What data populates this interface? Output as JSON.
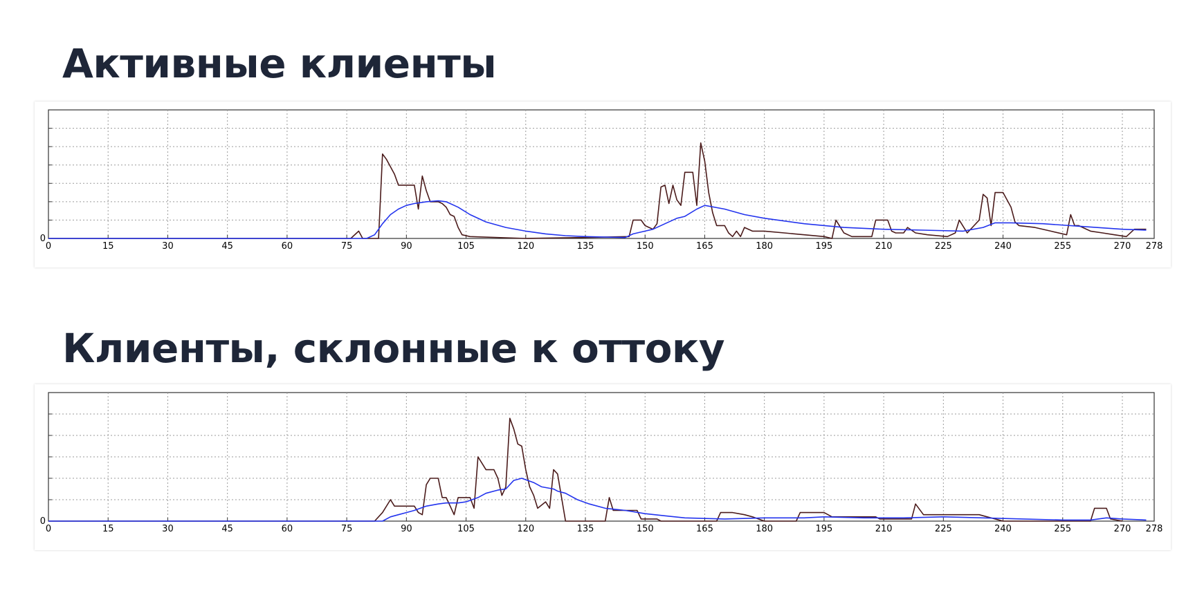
{
  "colors": {
    "title": "#1e2638",
    "raw_series": "#4a1a1a",
    "smooth_series": "#2233ee",
    "grid": "#9a9a9a"
  },
  "chart_data": [
    {
      "type": "line",
      "title": "Активные клиенты",
      "xlim": [
        0,
        278
      ],
      "ylim": [
        0,
        7
      ],
      "x_ticks": [
        0,
        15,
        30,
        45,
        60,
        75,
        90,
        105,
        120,
        135,
        150,
        165,
        180,
        195,
        210,
        225,
        240,
        255,
        270,
        278
      ],
      "y_tick_labels": [
        {
          "value": 0,
          "label": "0"
        }
      ],
      "grid": true,
      "series": [
        {
          "points": [
            [
              0,
              0
            ],
            [
              76,
              0
            ],
            [
              78,
              0.4
            ],
            [
              79,
              0
            ],
            [
              83,
              0
            ],
            [
              84,
              4.6
            ],
            [
              85,
              4.3
            ],
            [
              87,
              3.5
            ],
            [
              88,
              2.9
            ],
            [
              92,
              2.9
            ],
            [
              93,
              1.6
            ],
            [
              94,
              3.4
            ],
            [
              95,
              2.6
            ],
            [
              96,
              2.0
            ],
            [
              98,
              2.0
            ],
            [
              99,
              1.9
            ],
            [
              100,
              1.7
            ],
            [
              101,
              1.3
            ],
            [
              102,
              1.2
            ],
            [
              103,
              0.6
            ],
            [
              104,
              0.2
            ],
            [
              106,
              0.1
            ],
            [
              120,
              0
            ],
            [
              134,
              0.05
            ],
            [
              146,
              0.1
            ],
            [
              147,
              1.0
            ],
            [
              149,
              1.0
            ],
            [
              150,
              0.7
            ],
            [
              151,
              0.6
            ],
            [
              152,
              0.5
            ],
            [
              153,
              0.8
            ],
            [
              154,
              2.8
            ],
            [
              155,
              2.9
            ],
            [
              156,
              1.9
            ],
            [
              157,
              2.9
            ],
            [
              158,
              2.1
            ],
            [
              159,
              1.8
            ],
            [
              160,
              3.6
            ],
            [
              162,
              3.6
            ],
            [
              163,
              1.8
            ],
            [
              164,
              5.2
            ],
            [
              165,
              4.2
            ],
            [
              166,
              2.5
            ],
            [
              167,
              1.4
            ],
            [
              168,
              0.7
            ],
            [
              170,
              0.7
            ],
            [
              171,
              0.3
            ],
            [
              172,
              0.1
            ],
            [
              173,
              0.4
            ],
            [
              174,
              0.1
            ],
            [
              175,
              0.6
            ],
            [
              177,
              0.4
            ],
            [
              180,
              0.4
            ],
            [
              185,
              0.3
            ],
            [
              190,
              0.2
            ],
            [
              195,
              0.1
            ],
            [
              197,
              0
            ],
            [
              198,
              1.0
            ],
            [
              200,
              0.3
            ],
            [
              202,
              0.1
            ],
            [
              207,
              0.1
            ],
            [
              208,
              1.0
            ],
            [
              211,
              1.0
            ],
            [
              212,
              0.4
            ],
            [
              213,
              0.3
            ],
            [
              215,
              0.3
            ],
            [
              216,
              0.6
            ],
            [
              218,
              0.3
            ],
            [
              221,
              0.2
            ],
            [
              226,
              0.1
            ],
            [
              228,
              0.3
            ],
            [
              229,
              1.0
            ],
            [
              231,
              0.3
            ],
            [
              234,
              1.0
            ],
            [
              235,
              2.4
            ],
            [
              236,
              2.2
            ],
            [
              237,
              0.7
            ],
            [
              238,
              2.5
            ],
            [
              240,
              2.5
            ],
            [
              242,
              1.7
            ],
            [
              243,
              0.9
            ],
            [
              244,
              0.7
            ],
            [
              248,
              0.6
            ],
            [
              252,
              0.4
            ],
            [
              256,
              0.2
            ],
            [
              257,
              1.3
            ],
            [
              258,
              0.7
            ],
            [
              259,
              0.7
            ],
            [
              262,
              0.4
            ],
            [
              265,
              0.3
            ],
            [
              268,
              0.2
            ],
            [
              271,
              0.1
            ],
            [
              273,
              0.5
            ],
            [
              276,
              0.5
            ]
          ]
        },
        {
          "points": [
            [
              0,
              0
            ],
            [
              80,
              0
            ],
            [
              82,
              0.2
            ],
            [
              84,
              0.8
            ],
            [
              86,
              1.3
            ],
            [
              88,
              1.6
            ],
            [
              90,
              1.8
            ],
            [
              92,
              1.9
            ],
            [
              95,
              2.0
            ],
            [
              98,
              2.05
            ],
            [
              100,
              2.0
            ],
            [
              103,
              1.7
            ],
            [
              106,
              1.3
            ],
            [
              110,
              0.9
            ],
            [
              115,
              0.6
            ],
            [
              120,
              0.4
            ],
            [
              125,
              0.25
            ],
            [
              130,
              0.15
            ],
            [
              135,
              0.1
            ],
            [
              145,
              0.05
            ],
            [
              147,
              0.25
            ],
            [
              150,
              0.4
            ],
            [
              152,
              0.5
            ],
            [
              155,
              0.8
            ],
            [
              158,
              1.1
            ],
            [
              160,
              1.2
            ],
            [
              163,
              1.6
            ],
            [
              165,
              1.8
            ],
            [
              170,
              1.6
            ],
            [
              175,
              1.3
            ],
            [
              180,
              1.1
            ],
            [
              190,
              0.8
            ],
            [
              200,
              0.6
            ],
            [
              210,
              0.5
            ],
            [
              220,
              0.45
            ],
            [
              230,
              0.4
            ],
            [
              235,
              0.6
            ],
            [
              238,
              0.85
            ],
            [
              242,
              0.85
            ],
            [
              250,
              0.8
            ],
            [
              260,
              0.65
            ],
            [
              270,
              0.5
            ],
            [
              276,
              0.45
            ]
          ]
        }
      ]
    },
    {
      "type": "line",
      "title": "Клиенты, склонные к оттоку",
      "xlim": [
        0,
        278
      ],
      "ylim": [
        0,
        6
      ],
      "x_ticks": [
        0,
        15,
        30,
        45,
        60,
        75,
        90,
        105,
        120,
        135,
        150,
        165,
        180,
        195,
        210,
        225,
        240,
        255,
        270,
        278
      ],
      "y_tick_labels": [
        {
          "value": 0,
          "label": "0"
        }
      ],
      "grid": true,
      "series": [
        {
          "points": [
            [
              0,
              0
            ],
            [
              82,
              0
            ],
            [
              84,
              0.4
            ],
            [
              86,
              1.0
            ],
            [
              87,
              0.7
            ],
            [
              90,
              0.7
            ],
            [
              92,
              0.7
            ],
            [
              93,
              0.4
            ],
            [
              94,
              0.3
            ],
            [
              95,
              1.7
            ],
            [
              96,
              2.0
            ],
            [
              98,
              2.0
            ],
            [
              99,
              1.1
            ],
            [
              100,
              1.1
            ],
            [
              101,
              0.7
            ],
            [
              102,
              0.3
            ],
            [
              103,
              1.1
            ],
            [
              106,
              1.1
            ],
            [
              107,
              0.6
            ],
            [
              108,
              3.0
            ],
            [
              109,
              2.7
            ],
            [
              110,
              2.4
            ],
            [
              112,
              2.4
            ],
            [
              113,
              2.0
            ],
            [
              114,
              1.2
            ],
            [
              115,
              1.6
            ],
            [
              116,
              4.8
            ],
            [
              117,
              4.3
            ],
            [
              118,
              3.6
            ],
            [
              119,
              3.5
            ],
            [
              120,
              2.4
            ],
            [
              121,
              1.6
            ],
            [
              122,
              1.2
            ],
            [
              123,
              0.6
            ],
            [
              125,
              0.9
            ],
            [
              126,
              0.6
            ],
            [
              127,
              2.4
            ],
            [
              128,
              2.2
            ],
            [
              130,
              0
            ],
            [
              140,
              0
            ],
            [
              141,
              1.1
            ],
            [
              142,
              0.5
            ],
            [
              148,
              0.5
            ],
            [
              149,
              0.1
            ],
            [
              153,
              0.1
            ],
            [
              154,
              0
            ],
            [
              168,
              0
            ],
            [
              169,
              0.4
            ],
            [
              172,
              0.4
            ],
            [
              175,
              0.3
            ],
            [
              177,
              0.2
            ],
            [
              180,
              0
            ],
            [
              188,
              0
            ],
            [
              189,
              0.4
            ],
            [
              191,
              0.4
            ],
            [
              195,
              0.4
            ],
            [
              197,
              0.2
            ],
            [
              208,
              0.2
            ],
            [
              209,
              0.1
            ],
            [
              217,
              0.1
            ],
            [
              218,
              0.8
            ],
            [
              220,
              0.3
            ],
            [
              228,
              0.3
            ],
            [
              234,
              0.3
            ],
            [
              236,
              0.2
            ],
            [
              240,
              0
            ],
            [
              262,
              0
            ],
            [
              263,
              0.6
            ],
            [
              266,
              0.6
            ],
            [
              267,
              0.1
            ],
            [
              270,
              0
            ]
          ]
        },
        {
          "points": [
            [
              0,
              0
            ],
            [
              84,
              0
            ],
            [
              86,
              0.2
            ],
            [
              88,
              0.3
            ],
            [
              90,
              0.4
            ],
            [
              92,
              0.5
            ],
            [
              95,
              0.7
            ],
            [
              98,
              0.8
            ],
            [
              100,
              0.85
            ],
            [
              103,
              0.85
            ],
            [
              105,
              0.9
            ],
            [
              108,
              1.1
            ],
            [
              110,
              1.3
            ],
            [
              113,
              1.45
            ],
            [
              115,
              1.5
            ],
            [
              117,
              1.9
            ],
            [
              119,
              2.0
            ],
            [
              122,
              1.8
            ],
            [
              124,
              1.6
            ],
            [
              127,
              1.5
            ],
            [
              128,
              1.4
            ],
            [
              130,
              1.3
            ],
            [
              133,
              1.0
            ],
            [
              136,
              0.8
            ],
            [
              140,
              0.6
            ],
            [
              145,
              0.5
            ],
            [
              150,
              0.35
            ],
            [
              155,
              0.25
            ],
            [
              160,
              0.15
            ],
            [
              170,
              0.1
            ],
            [
              180,
              0.15
            ],
            [
              190,
              0.15
            ],
            [
              195,
              0.2
            ],
            [
              205,
              0.15
            ],
            [
              215,
              0.15
            ],
            [
              225,
              0.2
            ],
            [
              235,
              0.15
            ],
            [
              245,
              0.1
            ],
            [
              255,
              0.05
            ],
            [
              262,
              0.05
            ],
            [
              266,
              0.15
            ],
            [
              270,
              0.1
            ],
            [
              276,
              0.05
            ]
          ]
        }
      ]
    }
  ]
}
